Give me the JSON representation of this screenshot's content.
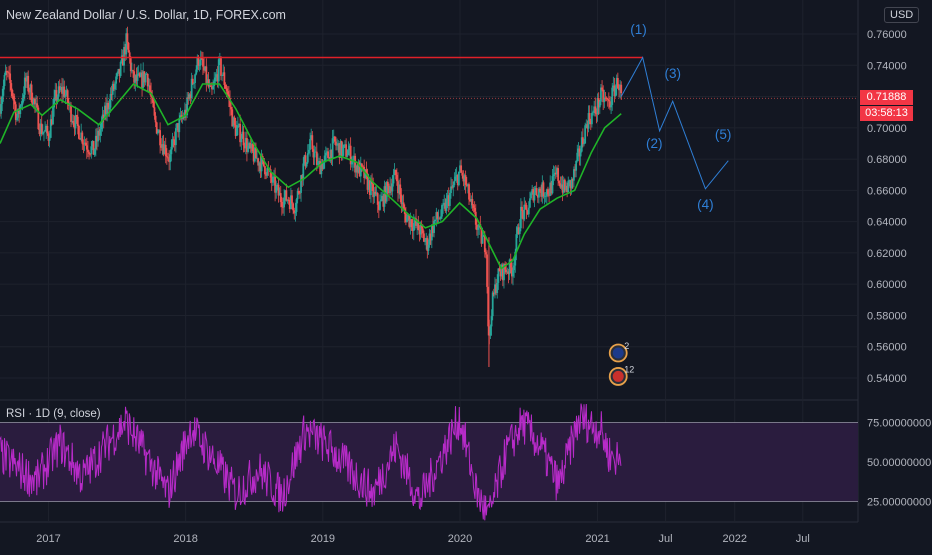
{
  "header": {
    "title": "New Zealand Dollar / U.S. Dollar, 1D, FOREX.com",
    "currency": "USD"
  },
  "price_box": {
    "last_price": "0.71888",
    "countdown": "03:58:13",
    "color": "#f23645"
  },
  "rsi": {
    "title": "RSI · 1D (9, close)"
  },
  "colors": {
    "background": "#131722",
    "up": "#26a69a",
    "down": "#ef5350",
    "ma": "#1fb528",
    "resistance": "#e02028",
    "wave": "#2f7fd6",
    "rsi_line": "#b72bc8",
    "rsi_band": "#2a1c3e",
    "badge": "#e8a14a"
  },
  "chart_data": [
    {
      "type": "candlestick",
      "title": "New Zealand Dollar / U.S. Dollar, 1D, FOREX.com",
      "xlabel": "",
      "ylabel": "",
      "ylim": [
        0.53,
        0.775
      ],
      "y_ticks": [
        "0.76000",
        "0.74000",
        "0.72000",
        "0.70000",
        "0.68000",
        "0.66000",
        "0.64000",
        "0.62000",
        "0.60000",
        "0.58000",
        "0.56000",
        "0.54000"
      ],
      "x_ticks": [
        "2017",
        "2018",
        "2019",
        "2020",
        "2021",
        "Jul",
        "2022",
        "Jul"
      ],
      "x_range": [
        "2016-08-25",
        "2022-11-25"
      ],
      "price_path": [
        [
          "2016-08-25",
          0.715
        ],
        [
          "2016-09-10",
          0.735
        ],
        [
          "2016-09-25",
          0.725
        ],
        [
          "2016-10-10",
          0.705
        ],
        [
          "2016-11-01",
          0.73
        ],
        [
          "2016-11-20",
          0.72
        ],
        [
          "2016-12-10",
          0.7
        ],
        [
          "2017-01-01",
          0.695
        ],
        [
          "2017-01-20",
          0.72
        ],
        [
          "2017-02-10",
          0.725
        ],
        [
          "2017-03-01",
          0.71
        ],
        [
          "2017-03-20",
          0.7
        ],
        [
          "2017-04-10",
          0.69
        ],
        [
          "2017-05-01",
          0.685
        ],
        [
          "2017-05-20",
          0.7
        ],
        [
          "2017-06-15",
          0.72
        ],
        [
          "2017-07-10",
          0.735
        ],
        [
          "2017-07-27",
          0.755
        ],
        [
          "2017-08-15",
          0.73
        ],
        [
          "2017-09-05",
          0.73
        ],
        [
          "2017-09-20",
          0.735
        ],
        [
          "2017-10-10",
          0.705
        ],
        [
          "2017-11-01",
          0.69
        ],
        [
          "2017-11-20",
          0.68
        ],
        [
          "2017-12-10",
          0.7
        ],
        [
          "2018-01-01",
          0.71
        ],
        [
          "2018-01-20",
          0.73
        ],
        [
          "2018-02-05",
          0.745
        ],
        [
          "2018-02-20",
          0.735
        ],
        [
          "2018-03-10",
          0.72
        ],
        [
          "2018-04-01",
          0.74
        ],
        [
          "2018-04-20",
          0.725
        ],
        [
          "2018-05-10",
          0.7
        ],
        [
          "2018-06-01",
          0.695
        ],
        [
          "2018-06-20",
          0.685
        ],
        [
          "2018-07-10",
          0.68
        ],
        [
          "2018-08-01",
          0.675
        ],
        [
          "2018-08-20",
          0.665
        ],
        [
          "2018-09-10",
          0.655
        ],
        [
          "2018-10-01",
          0.655
        ],
        [
          "2018-10-20",
          0.65
        ],
        [
          "2018-11-10",
          0.675
        ],
        [
          "2018-12-01",
          0.69
        ],
        [
          "2018-12-20",
          0.675
        ],
        [
          "2019-01-10",
          0.68
        ],
        [
          "2019-02-01",
          0.69
        ],
        [
          "2019-02-20",
          0.685
        ],
        [
          "2019-03-10",
          0.685
        ],
        [
          "2019-04-01",
          0.675
        ],
        [
          "2019-04-20",
          0.67
        ],
        [
          "2019-05-10",
          0.66
        ],
        [
          "2019-06-01",
          0.65
        ],
        [
          "2019-06-20",
          0.66
        ],
        [
          "2019-07-15",
          0.67
        ],
        [
          "2019-08-05",
          0.645
        ],
        [
          "2019-08-25",
          0.64
        ],
        [
          "2019-09-15",
          0.635
        ],
        [
          "2019-10-05",
          0.625
        ],
        [
          "2019-10-25",
          0.64
        ],
        [
          "2019-11-15",
          0.645
        ],
        [
          "2019-12-10",
          0.66
        ],
        [
          "2019-12-31",
          0.672
        ],
        [
          "2020-01-15",
          0.665
        ],
        [
          "2020-02-05",
          0.645
        ],
        [
          "2020-02-25",
          0.63
        ],
        [
          "2020-03-10",
          0.625
        ],
        [
          "2020-03-18",
          0.56
        ],
        [
          "2020-03-25",
          0.585
        ],
        [
          "2020-04-10",
          0.605
        ],
        [
          "2020-05-01",
          0.61
        ],
        [
          "2020-05-20",
          0.61
        ],
        [
          "2020-06-10",
          0.645
        ],
        [
          "2020-06-25",
          0.645
        ],
        [
          "2020-07-15",
          0.66
        ],
        [
          "2020-08-05",
          0.66
        ],
        [
          "2020-08-25",
          0.66
        ],
        [
          "2020-09-15",
          0.67
        ],
        [
          "2020-10-05",
          0.66
        ],
        [
          "2020-10-25",
          0.665
        ],
        [
          "2020-11-15",
          0.685
        ],
        [
          "2020-12-05",
          0.705
        ],
        [
          "2020-12-25",
          0.71
        ],
        [
          "2021-01-10",
          0.72
        ],
        [
          "2021-02-01",
          0.715
        ],
        [
          "2021-02-15",
          0.725
        ],
        [
          "2021-02-25",
          0.73
        ],
        [
          "2021-03-05",
          0.72
        ]
      ],
      "moving_average": [
        [
          "2016-08-25",
          0.69
        ],
        [
          "2016-10-01",
          0.71
        ],
        [
          "2016-11-15",
          0.715
        ],
        [
          "2016-12-15",
          0.708
        ],
        [
          "2017-02-01",
          0.718
        ],
        [
          "2017-03-20",
          0.712
        ],
        [
          "2017-05-15",
          0.702
        ],
        [
          "2017-07-01",
          0.715
        ],
        [
          "2017-08-15",
          0.728
        ],
        [
          "2017-10-01",
          0.722
        ],
        [
          "2017-11-15",
          0.702
        ],
        [
          "2018-01-01",
          0.708
        ],
        [
          "2018-02-15",
          0.728
        ],
        [
          "2018-04-01",
          0.728
        ],
        [
          "2018-05-15",
          0.712
        ],
        [
          "2018-07-01",
          0.69
        ],
        [
          "2018-08-15",
          0.672
        ],
        [
          "2018-10-01",
          0.662
        ],
        [
          "2018-11-15",
          0.668
        ],
        [
          "2019-01-01",
          0.678
        ],
        [
          "2019-02-15",
          0.682
        ],
        [
          "2019-04-01",
          0.678
        ],
        [
          "2019-05-15",
          0.665
        ],
        [
          "2019-07-01",
          0.655
        ],
        [
          "2019-08-15",
          0.645
        ],
        [
          "2019-10-01",
          0.636
        ],
        [
          "2019-11-15",
          0.64
        ],
        [
          "2019-12-31",
          0.652
        ],
        [
          "2020-02-15",
          0.642
        ],
        [
          "2020-03-20",
          0.625
        ],
        [
          "2020-04-20",
          0.61
        ],
        [
          "2020-05-20",
          0.615
        ],
        [
          "2020-06-20",
          0.632
        ],
        [
          "2020-08-01",
          0.648
        ],
        [
          "2020-09-15",
          0.655
        ],
        [
          "2020-11-01",
          0.66
        ],
        [
          "2020-12-15",
          0.684
        ],
        [
          "2021-01-20",
          0.7
        ],
        [
          "2021-03-05",
          0.709
        ]
      ],
      "resistance_line": {
        "from": "2016-08-25",
        "to": "2021-05-01",
        "value": 0.745
      },
      "last_price": 0.71888,
      "wave_projection": {
        "points": [
          [
            "2021-03-05",
            0.72
          ],
          [
            "2021-05-01",
            0.745
          ],
          [
            "2021-06-15",
            0.698
          ],
          [
            "2021-07-20",
            0.717
          ],
          [
            "2021-10-15",
            0.661
          ],
          [
            "2021-12-15",
            0.679
          ]
        ],
        "labels": [
          {
            "text": "(1)",
            "x": "2021-04-20",
            "y": 0.76
          },
          {
            "text": "(2)",
            "x": "2021-06-01",
            "y": 0.687
          },
          {
            "text": "(3)",
            "x": "2021-07-20",
            "y": 0.732
          },
          {
            "text": "(4)",
            "x": "2021-10-15",
            "y": 0.648
          },
          {
            "text": "(5)",
            "x": "2021-12-01",
            "y": 0.693
          }
        ]
      },
      "event_badges": [
        {
          "count": "2",
          "x": "2021-02-25",
          "y": 0.556
        },
        {
          "count": "12",
          "x": "2021-02-25",
          "y": 0.541
        }
      ]
    },
    {
      "type": "line",
      "title": "RSI · 1D (9, close)",
      "ylim": [
        12,
        88
      ],
      "y_ticks": [
        "75.00000000",
        "50.00000000",
        "25.00000000"
      ],
      "bands": [
        25,
        75
      ],
      "rsi_path": [
        [
          "2016-08-25",
          55
        ],
        [
          "2016-10-15",
          45
        ],
        [
          "2016-12-01",
          38
        ],
        [
          "2017-02-01",
          62
        ],
        [
          "2017-04-01",
          40
        ],
        [
          "2017-06-01",
          60
        ],
        [
          "2017-07-25",
          76
        ],
        [
          "2017-09-15",
          55
        ],
        [
          "2017-11-15",
          30
        ],
        [
          "2018-01-15",
          72
        ],
        [
          "2018-03-15",
          52
        ],
        [
          "2018-05-15",
          30
        ],
        [
          "2018-07-15",
          45
        ],
        [
          "2018-09-15",
          28
        ],
        [
          "2018-11-15",
          70
        ],
        [
          "2019-01-15",
          60
        ],
        [
          "2019-03-15",
          45
        ],
        [
          "2019-05-15",
          30
        ],
        [
          "2019-07-15",
          60
        ],
        [
          "2019-09-15",
          25
        ],
        [
          "2019-11-15",
          55
        ],
        [
          "2019-12-31",
          78
        ],
        [
          "2020-02-15",
          30
        ],
        [
          "2020-03-18",
          15
        ],
        [
          "2020-05-01",
          55
        ],
        [
          "2020-06-15",
          75
        ],
        [
          "2020-08-01",
          60
        ],
        [
          "2020-09-20",
          35
        ],
        [
          "2020-11-15",
          78
        ],
        [
          "2021-01-10",
          70
        ],
        [
          "2021-02-01",
          55
        ],
        [
          "2021-03-05",
          50
        ]
      ]
    }
  ]
}
